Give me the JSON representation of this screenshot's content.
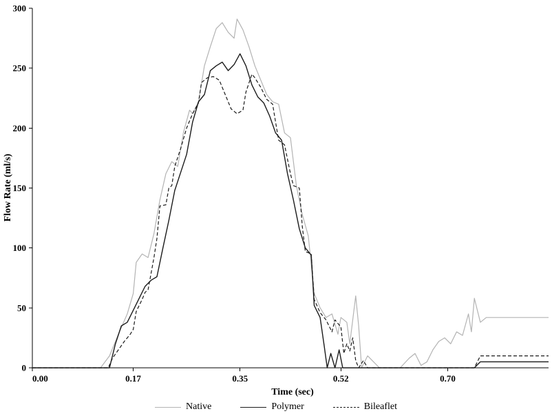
{
  "chart_data": {
    "type": "line",
    "title": "",
    "xlabel": "Time (sec)",
    "ylabel": "Flow Rate (ml/s)",
    "xlim": [
      0,
      0.87
    ],
    "ylim": [
      0,
      300
    ],
    "xticks": [
      0.0,
      0.17,
      0.35,
      0.52,
      0.7
    ],
    "xtick_labels": [
      "0.00",
      "0.17",
      "0.35",
      "0.52",
      "0.70"
    ],
    "yticks": [
      0,
      50,
      100,
      150,
      200,
      250,
      300
    ],
    "grid": false,
    "legend_position": "bottom-center",
    "series": [
      {
        "name": "Native",
        "color": "#b3b3b3",
        "dash": "solid",
        "points": [
          [
            0.0,
            0
          ],
          [
            0.04,
            0
          ],
          [
            0.08,
            0
          ],
          [
            0.115,
            0
          ],
          [
            0.13,
            10
          ],
          [
            0.145,
            28
          ],
          [
            0.16,
            45
          ],
          [
            0.17,
            62
          ],
          [
            0.175,
            88
          ],
          [
            0.185,
            95
          ],
          [
            0.195,
            92
          ],
          [
            0.205,
            112
          ],
          [
            0.215,
            140
          ],
          [
            0.225,
            162
          ],
          [
            0.235,
            172
          ],
          [
            0.245,
            168
          ],
          [
            0.255,
            197
          ],
          [
            0.265,
            215
          ],
          [
            0.27,
            212
          ],
          [
            0.28,
            222
          ],
          [
            0.29,
            252
          ],
          [
            0.3,
            268
          ],
          [
            0.31,
            283
          ],
          [
            0.32,
            288
          ],
          [
            0.33,
            280
          ],
          [
            0.34,
            275
          ],
          [
            0.345,
            291
          ],
          [
            0.355,
            282
          ],
          [
            0.365,
            268
          ],
          [
            0.375,
            252
          ],
          [
            0.385,
            240
          ],
          [
            0.395,
            228
          ],
          [
            0.405,
            222
          ],
          [
            0.415,
            220
          ],
          [
            0.425,
            196
          ],
          [
            0.435,
            192
          ],
          [
            0.445,
            152
          ],
          [
            0.455,
            128
          ],
          [
            0.465,
            110
          ],
          [
            0.475,
            62
          ],
          [
            0.485,
            50
          ],
          [
            0.495,
            42
          ],
          [
            0.505,
            45
          ],
          [
            0.515,
            28
          ],
          [
            0.52,
            42
          ],
          [
            0.53,
            38
          ],
          [
            0.535,
            20
          ],
          [
            0.545,
            60
          ],
          [
            0.55,
            35
          ],
          [
            0.555,
            0
          ],
          [
            0.565,
            10
          ],
          [
            0.575,
            5
          ],
          [
            0.585,
            0
          ],
          [
            0.6,
            0
          ],
          [
            0.62,
            0
          ],
          [
            0.635,
            8
          ],
          [
            0.645,
            12
          ],
          [
            0.655,
            2
          ],
          [
            0.665,
            5
          ],
          [
            0.675,
            15
          ],
          [
            0.685,
            22
          ],
          [
            0.695,
            25
          ],
          [
            0.705,
            20
          ],
          [
            0.715,
            30
          ],
          [
            0.725,
            27
          ],
          [
            0.735,
            45
          ],
          [
            0.74,
            30
          ],
          [
            0.745,
            58
          ],
          [
            0.755,
            38
          ],
          [
            0.765,
            42
          ],
          [
            0.8,
            42
          ],
          [
            0.87,
            42
          ]
        ]
      },
      {
        "name": "Polymer",
        "color": "#1a1a1a",
        "dash": "solid",
        "points": [
          [
            0.0,
            0
          ],
          [
            0.05,
            0
          ],
          [
            0.1,
            0
          ],
          [
            0.13,
            0
          ],
          [
            0.14,
            20
          ],
          [
            0.15,
            35
          ],
          [
            0.16,
            38
          ],
          [
            0.17,
            48
          ],
          [
            0.18,
            58
          ],
          [
            0.19,
            68
          ],
          [
            0.2,
            73
          ],
          [
            0.21,
            76
          ],
          [
            0.22,
            100
          ],
          [
            0.23,
            123
          ],
          [
            0.24,
            148
          ],
          [
            0.25,
            163
          ],
          [
            0.26,
            178
          ],
          [
            0.27,
            205
          ],
          [
            0.28,
            222
          ],
          [
            0.29,
            228
          ],
          [
            0.3,
            248
          ],
          [
            0.31,
            252
          ],
          [
            0.32,
            255
          ],
          [
            0.33,
            248
          ],
          [
            0.34,
            253
          ],
          [
            0.35,
            262
          ],
          [
            0.36,
            252
          ],
          [
            0.37,
            236
          ],
          [
            0.38,
            226
          ],
          [
            0.39,
            221
          ],
          [
            0.4,
            210
          ],
          [
            0.41,
            196
          ],
          [
            0.42,
            190
          ],
          [
            0.43,
            162
          ],
          [
            0.44,
            140
          ],
          [
            0.45,
            116
          ],
          [
            0.46,
            100
          ],
          [
            0.47,
            94
          ],
          [
            0.475,
            52
          ],
          [
            0.485,
            42
          ],
          [
            0.492,
            18
          ],
          [
            0.497,
            0
          ],
          [
            0.503,
            12
          ],
          [
            0.51,
            0
          ],
          [
            0.517,
            15
          ],
          [
            0.523,
            0
          ],
          [
            0.55,
            0
          ],
          [
            0.6,
            0
          ],
          [
            0.7,
            0
          ],
          [
            0.745,
            0
          ],
          [
            0.755,
            5
          ],
          [
            0.8,
            5
          ],
          [
            0.87,
            5
          ]
        ]
      },
      {
        "name": "Bileaflet",
        "color": "#1a1a1a",
        "dash": "dashed",
        "points": [
          [
            0.0,
            0
          ],
          [
            0.05,
            0
          ],
          [
            0.1,
            0
          ],
          [
            0.128,
            0
          ],
          [
            0.135,
            8
          ],
          [
            0.145,
            15
          ],
          [
            0.155,
            22
          ],
          [
            0.165,
            28
          ],
          [
            0.17,
            32
          ],
          [
            0.175,
            47
          ],
          [
            0.185,
            57
          ],
          [
            0.19,
            63
          ],
          [
            0.195,
            65
          ],
          [
            0.205,
            92
          ],
          [
            0.21,
            108
          ],
          [
            0.215,
            135
          ],
          [
            0.225,
            136
          ],
          [
            0.23,
            150
          ],
          [
            0.235,
            152
          ],
          [
            0.24,
            168
          ],
          [
            0.25,
            183
          ],
          [
            0.26,
            200
          ],
          [
            0.27,
            212
          ],
          [
            0.28,
            221
          ],
          [
            0.285,
            238
          ],
          [
            0.295,
            242
          ],
          [
            0.305,
            243
          ],
          [
            0.315,
            240
          ],
          [
            0.325,
            228
          ],
          [
            0.335,
            216
          ],
          [
            0.345,
            212
          ],
          [
            0.355,
            215
          ],
          [
            0.36,
            230
          ],
          [
            0.37,
            245
          ],
          [
            0.375,
            242
          ],
          [
            0.385,
            234
          ],
          [
            0.395,
            224
          ],
          [
            0.405,
            220
          ],
          [
            0.41,
            205
          ],
          [
            0.415,
            190
          ],
          [
            0.425,
            186
          ],
          [
            0.435,
            162
          ],
          [
            0.44,
            152
          ],
          [
            0.45,
            150
          ],
          [
            0.455,
            118
          ],
          [
            0.46,
            97
          ],
          [
            0.47,
            95
          ],
          [
            0.475,
            57
          ],
          [
            0.485,
            46
          ],
          [
            0.495,
            40
          ],
          [
            0.505,
            30
          ],
          [
            0.51,
            40
          ],
          [
            0.52,
            34
          ],
          [
            0.525,
            12
          ],
          [
            0.53,
            20
          ],
          [
            0.535,
            14
          ],
          [
            0.54,
            25
          ],
          [
            0.545,
            6
          ],
          [
            0.55,
            0
          ],
          [
            0.558,
            6
          ],
          [
            0.565,
            0
          ],
          [
            0.6,
            0
          ],
          [
            0.7,
            0
          ],
          [
            0.745,
            0
          ],
          [
            0.755,
            10
          ],
          [
            0.8,
            10
          ],
          [
            0.87,
            10
          ]
        ]
      }
    ]
  },
  "legend": {
    "items": [
      "Native",
      "Polymer",
      "Bileaflet"
    ]
  }
}
